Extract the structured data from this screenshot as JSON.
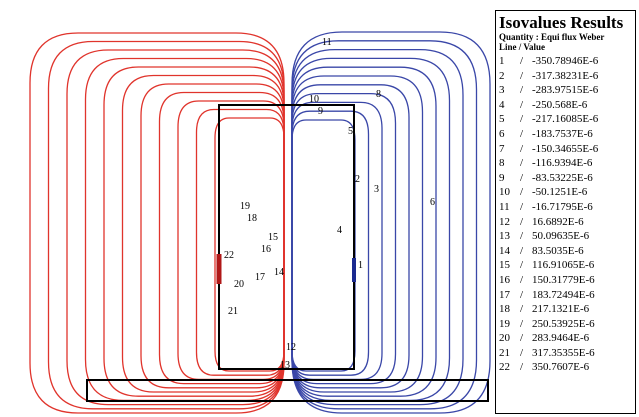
{
  "legend": {
    "title": "Isovalues Results",
    "quantity": "Quantity : Equi flux Weber",
    "header": "Line / Value",
    "rows": [
      {
        "n": "1",
        "v": "-350.78946E-6"
      },
      {
        "n": "2",
        "v": "-317.38231E-6"
      },
      {
        "n": "3",
        "v": "-283.97515E-6"
      },
      {
        "n": "4",
        "v": "-250.568E-6"
      },
      {
        "n": "5",
        "v": "-217.16085E-6"
      },
      {
        "n": "6",
        "v": "-183.7537E-6"
      },
      {
        "n": "7",
        "v": "-150.34655E-6"
      },
      {
        "n": "8",
        "v": "-116.9394E-6"
      },
      {
        "n": "9",
        "v": "-83.53225E-6"
      },
      {
        "n": "10",
        "v": "-50.1251E-6"
      },
      {
        "n": "11",
        "v": "-16.71795E-6"
      },
      {
        "n": "12",
        "v": "16.6892E-6"
      },
      {
        "n": "13",
        "v": "50.09635E-6"
      },
      {
        "n": "14",
        "v": "83.5035E-6"
      },
      {
        "n": "15",
        "v": "116.91065E-6"
      },
      {
        "n": "16",
        "v": "150.31779E-6"
      },
      {
        "n": "17",
        "v": "183.72494E-6"
      },
      {
        "n": "18",
        "v": "217.1321E-6"
      },
      {
        "n": "19",
        "v": "250.53925E-6"
      },
      {
        "n": "20",
        "v": "283.9464E-6"
      },
      {
        "n": "21",
        "v": "317.35355E-6"
      },
      {
        "n": "22",
        "v": "350.7607E-6"
      }
    ]
  },
  "plot_labels": [
    "11",
    "10",
    "8",
    "9",
    "5",
    "2",
    "3",
    "6",
    "4",
    "1",
    "19",
    "18",
    "15",
    "16",
    "22",
    "14",
    "17",
    "20",
    "21",
    "12",
    "13"
  ],
  "colors": {
    "positive": "#e0342c",
    "negative": "#3a47a8",
    "outline": "#000000"
  }
}
